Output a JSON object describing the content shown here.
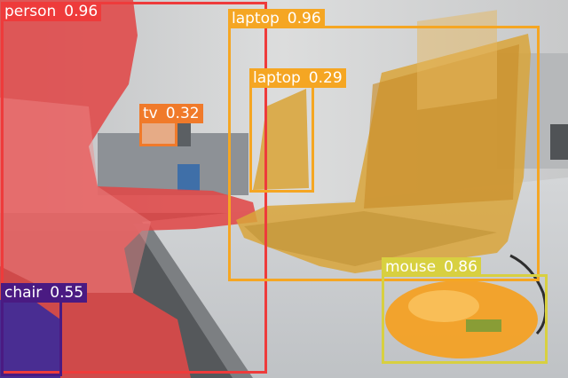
{
  "image": {
    "description_colors": {
      "wall": "#d9dadb",
      "desk": "#c9cccf",
      "floor": "#5a5c5e"
    }
  },
  "detections": [
    {
      "id": "person",
      "label": "person",
      "score": "0.96",
      "color": "#ee3b3b",
      "mask_color": "#e04848"
    },
    {
      "id": "chair",
      "label": "chair",
      "score": "0.55",
      "color": "#4a1a82",
      "mask_color": "#3a2a9a"
    },
    {
      "id": "tv",
      "label": "tv",
      "score": "0.32",
      "color": "#f07a2a",
      "mask_color": "#f29a5a"
    },
    {
      "id": "laptop-large",
      "label": "laptop",
      "score": "0.96",
      "color": "#f5a623",
      "mask_color": "#d9a53a"
    },
    {
      "id": "laptop-small",
      "label": "laptop",
      "score": "0.29",
      "color": "#f5a623",
      "mask_color": "#d9a53a"
    },
    {
      "id": "mouse",
      "label": "mouse",
      "score": "0.86",
      "color": "#d8d040",
      "mask_color": "#f5a020"
    }
  ]
}
